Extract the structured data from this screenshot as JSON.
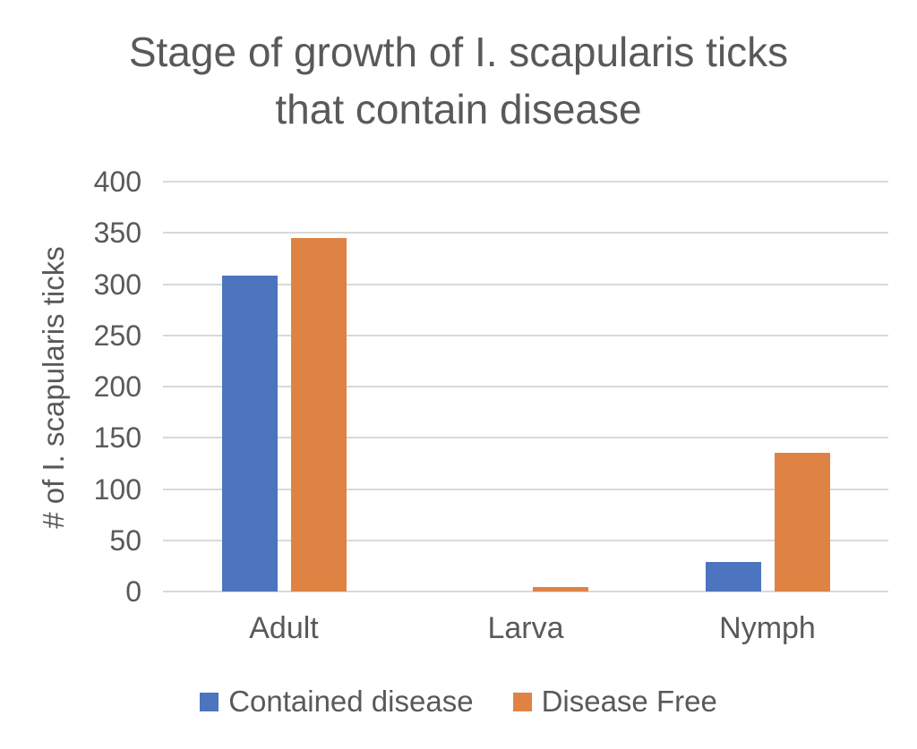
{
  "title": {
    "lines": [
      "Stage of growth of I. scapularis ticks",
      "that contain disease"
    ]
  },
  "chart_data": {
    "type": "bar",
    "title": "Stage of growth of I. scapularis ticks that contain disease",
    "categories": [
      "Adult",
      "Larva",
      "Nymph"
    ],
    "series": [
      {
        "name": "Contained disease",
        "color": "#4d74be",
        "values": [
          308,
          0,
          29
        ]
      },
      {
        "name": "Disease Free",
        "color": "#df8344",
        "values": [
          345,
          4,
          135
        ]
      }
    ],
    "xlabel": "",
    "ylabel": "# of I. scapularis ticks",
    "ylim": [
      0,
      400
    ],
    "yticks": [
      0,
      50,
      100,
      150,
      200,
      250,
      300,
      350,
      400
    ],
    "grid": "horizontal",
    "legend_position": "bottom"
  },
  "colors": {
    "text": "#595959",
    "gridline": "#d9d9d9",
    "background": "#ffffff",
    "series_blue": "#4d74be",
    "series_orange": "#df8344"
  }
}
